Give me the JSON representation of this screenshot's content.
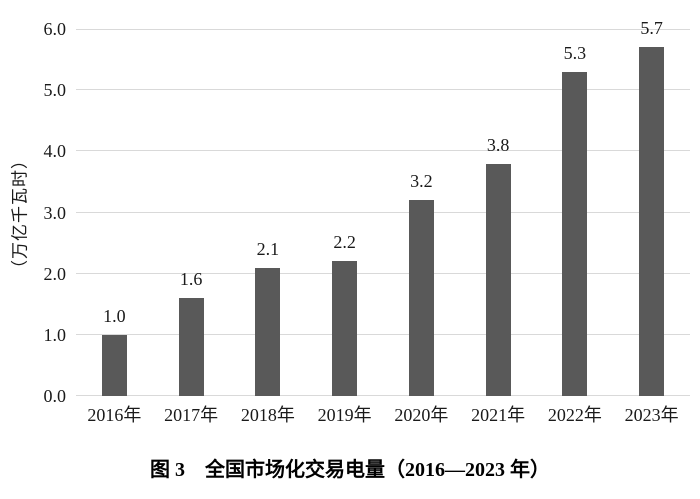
{
  "figure": {
    "caption": "图 3　全国市场化交易电量（2016—2023 年）"
  },
  "chart_data": {
    "type": "bar",
    "title": "全国市场化交易电量（2016—2023 年）",
    "categories": [
      "2016年",
      "2017年",
      "2018年",
      "2019年",
      "2020年",
      "2021年",
      "2022年",
      "2023年"
    ],
    "values": [
      1.0,
      1.6,
      2.1,
      2.2,
      3.2,
      3.8,
      5.3,
      5.7
    ],
    "value_labels": [
      "1.0",
      "1.6",
      "2.1",
      "2.2",
      "3.2",
      "3.8",
      "5.3",
      "5.7"
    ],
    "xlabel": "",
    "ylabel": "（万亿千瓦时）",
    "ylim": [
      0,
      6
    ],
    "yticks": [
      "0.0",
      "1.0",
      "2.0",
      "3.0",
      "4.0",
      "5.0",
      "6.0"
    ],
    "grid": "horizontal",
    "legend": "none",
    "bar_color": "#595959",
    "gridline_color": "#d9d9d9",
    "text_color": "#1a1a1a"
  }
}
